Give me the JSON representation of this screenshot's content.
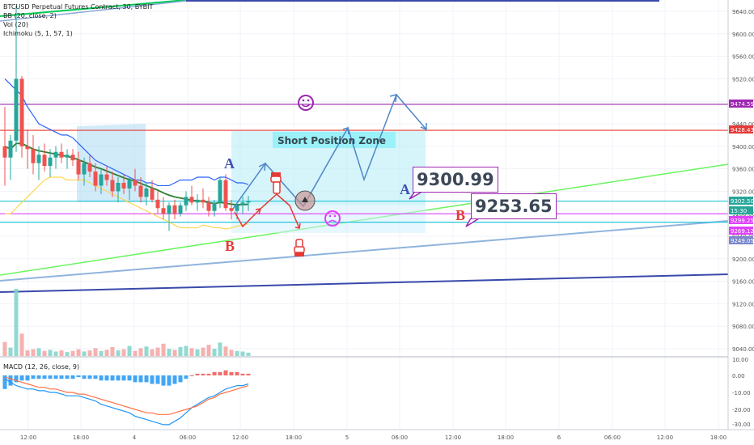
{
  "legend": {
    "symbol": "BTCUSD Perpetual Futures Contract, 30, BYBIT",
    "bb": "BB (20, close, 2)",
    "vol": "Vol (20)",
    "ichimoku": "Ichimoku (5, 1, 57, 1)",
    "macd": "MACD (12, 26, close, 9)"
  },
  "annotations": {
    "zone_label": "Short Position Zone",
    "box_a_price": "9300.99",
    "box_b_price": "9253.65",
    "wave_a_upper": "A",
    "wave_b_lower": "B",
    "wave_a_right": "A",
    "wave_b_right": "B"
  },
  "colors": {
    "bull": "#26a69a",
    "bear": "#ef5350",
    "annotation_red": "#e53935",
    "annotation_blue": "#3f51b5",
    "path_blue": "#4f86c6",
    "purple": "#9c27b0",
    "zone_fill": "#b3ecf7"
  },
  "chart_data": {
    "type": "candlestick",
    "symbol": "BTCUSD",
    "timeframe": "30",
    "exchange": "BYBIT",
    "price_axis_ticks": [
      "9640.00",
      "9600.00",
      "9560.00",
      "9520.00",
      "9480.00",
      "9440.00",
      "9400.00",
      "9360.00",
      "9320.00",
      "9280.00",
      "9240.00",
      "9200.00",
      "9160.00",
      "9120.00",
      "9080.00",
      "9040.00"
    ],
    "time_axis_ticks": [
      "12:00",
      "18:00",
      "4",
      "06:00",
      "12:00",
      "18:00",
      "5",
      "06:00",
      "12:00",
      "18:00",
      "6",
      "06:00",
      "12:00",
      "18:00"
    ],
    "macd_axis_ticks": [
      "10.00",
      "0.00",
      "-10.00",
      "-20.00",
      "-30.00"
    ],
    "price_tags": [
      {
        "label": "9474.59",
        "color": "#9c27b0",
        "value": 9474.59
      },
      {
        "label": "9428.43",
        "color": "#e53935",
        "value": 9428.43
      },
      {
        "label": "9302.50",
        "color": "#26a69a",
        "value": 9302.5
      },
      {
        "label": "15:30",
        "color": "#26a69a",
        "value": 9290
      },
      {
        "label": "9299.25",
        "color": "#e040fb",
        "value": 9280
      },
      {
        "label": "9269.12",
        "color": "#e040fb",
        "value": 9269.12
      },
      {
        "label": "9249.05",
        "color": "#7986cb",
        "value": 9249.05
      }
    ],
    "horizontal_levels": [
      {
        "value": 9474.59,
        "color": "#9c27b0"
      },
      {
        "value": 9428.43,
        "color": "#e53935"
      },
      {
        "value": 9302.5,
        "color": "#26c6da"
      },
      {
        "value": 9280,
        "color": "#e040fb"
      },
      {
        "value": 9265,
        "color": "#26c6da"
      }
    ],
    "candles": [
      {
        "o": 9400,
        "h": 9470,
        "l": 9330,
        "c": 9380
      },
      {
        "o": 9380,
        "h": 9420,
        "l": 9340,
        "c": 9410
      },
      {
        "o": 9410,
        "h": 9650,
        "l": 9390,
        "c": 9520
      },
      {
        "o": 9520,
        "h": 9525,
        "l": 9380,
        "c": 9400
      },
      {
        "o": 9400,
        "h": 9430,
        "l": 9360,
        "c": 9395
      },
      {
        "o": 9395,
        "h": 9420,
        "l": 9350,
        "c": 9370
      },
      {
        "o": 9370,
        "h": 9400,
        "l": 9340,
        "c": 9385
      },
      {
        "o": 9385,
        "h": 9405,
        "l": 9355,
        "c": 9365
      },
      {
        "o": 9365,
        "h": 9395,
        "l": 9345,
        "c": 9380
      },
      {
        "o": 9380,
        "h": 9400,
        "l": 9360,
        "c": 9390
      },
      {
        "o": 9390,
        "h": 9405,
        "l": 9370,
        "c": 9380
      },
      {
        "o": 9380,
        "h": 9395,
        "l": 9360,
        "c": 9385
      },
      {
        "o": 9385,
        "h": 9395,
        "l": 9365,
        "c": 9375
      },
      {
        "o": 9375,
        "h": 9390,
        "l": 9340,
        "c": 9350
      },
      {
        "o": 9350,
        "h": 9380,
        "l": 9330,
        "c": 9370
      },
      {
        "o": 9370,
        "h": 9385,
        "l": 9345,
        "c": 9355
      },
      {
        "o": 9355,
        "h": 9370,
        "l": 9320,
        "c": 9330
      },
      {
        "o": 9330,
        "h": 9360,
        "l": 9315,
        "c": 9350
      },
      {
        "o": 9350,
        "h": 9365,
        "l": 9330,
        "c": 9340
      },
      {
        "o": 9340,
        "h": 9355,
        "l": 9310,
        "c": 9320
      },
      {
        "o": 9320,
        "h": 9345,
        "l": 9300,
        "c": 9335
      },
      {
        "o": 9335,
        "h": 9350,
        "l": 9315,
        "c": 9325
      },
      {
        "o": 9325,
        "h": 9345,
        "l": 9305,
        "c": 9340
      },
      {
        "o": 9340,
        "h": 9360,
        "l": 9320,
        "c": 9330
      },
      {
        "o": 9330,
        "h": 9345,
        "l": 9300,
        "c": 9310
      },
      {
        "o": 9310,
        "h": 9335,
        "l": 9295,
        "c": 9325
      },
      {
        "o": 9325,
        "h": 9340,
        "l": 9300,
        "c": 9305
      },
      {
        "o": 9305,
        "h": 9320,
        "l": 9280,
        "c": 9290
      },
      {
        "o": 9290,
        "h": 9310,
        "l": 9270,
        "c": 9280
      },
      {
        "o": 9280,
        "h": 9300,
        "l": 9250,
        "c": 9295
      },
      {
        "o": 9295,
        "h": 9305,
        "l": 9270,
        "c": 9280
      },
      {
        "o": 9280,
        "h": 9300,
        "l": 9275,
        "c": 9295
      },
      {
        "o": 9295,
        "h": 9320,
        "l": 9285,
        "c": 9310
      },
      {
        "o": 9310,
        "h": 9330,
        "l": 9295,
        "c": 9300
      },
      {
        "o": 9300,
        "h": 9315,
        "l": 9285,
        "c": 9305
      },
      {
        "o": 9305,
        "h": 9325,
        "l": 9290,
        "c": 9300
      },
      {
        "o": 9300,
        "h": 9310,
        "l": 9275,
        "c": 9285
      },
      {
        "o": 9285,
        "h": 9305,
        "l": 9275,
        "c": 9300
      },
      {
        "o": 9300,
        "h": 9345,
        "l": 9290,
        "c": 9340
      },
      {
        "o": 9340,
        "h": 9350,
        "l": 9285,
        "c": 9290
      },
      {
        "o": 9290,
        "h": 9305,
        "l": 9270,
        "c": 9285
      },
      {
        "o": 9285,
        "h": 9300,
        "l": 9270,
        "c": 9295
      },
      {
        "o": 9295,
        "h": 9310,
        "l": 9280,
        "c": 9300
      },
      {
        "o": 9300,
        "h": 9312,
        "l": 9285,
        "c": 9302.5
      }
    ],
    "volume": [
      25,
      15,
      120,
      40,
      10,
      12,
      14,
      9,
      11,
      8,
      10,
      7,
      9,
      12,
      8,
      10,
      14,
      9,
      11,
      16,
      10,
      12,
      18,
      9,
      14,
      17,
      12,
      15,
      22,
      13,
      11,
      16,
      18,
      14,
      12,
      15,
      20,
      13,
      24,
      17,
      11,
      9,
      8,
      6
    ],
    "bb_upper": [
      9520,
      9510,
      9500,
      9490,
      9470,
      9455,
      9440,
      9435,
      9430,
      9425,
      9420,
      9420,
      9415,
      9405,
      9395,
      9385,
      9375,
      9370,
      9365,
      9360,
      9355,
      9350,
      9345,
      9340,
      9340,
      9335,
      9335,
      9330,
      9330,
      9330,
      9335,
      9340,
      9340,
      9340,
      9345,
      9345,
      9345,
      9340,
      9345,
      9345,
      9340,
      9335,
      9335,
      9332
    ],
    "bb_basis": [
      9400,
      9395,
      9405,
      9405,
      9400,
      9395,
      9392,
      9390,
      9388,
      9386,
      9384,
      9382,
      9380,
      9376,
      9372,
      9368,
      9363,
      9360,
      9356,
      9352,
      9348,
      9344,
      9341,
      9338,
      9334,
      9330,
      9326,
      9322,
      9317,
      9313,
      9310,
      9308,
      9306,
      9304,
      9303,
      9302,
      9300,
      9298,
      9300,
      9299,
      9297,
      9296,
      9296,
      9297
    ],
    "bb_lower": [
      9280,
      9280,
      9290,
      9300,
      9310,
      9320,
      9330,
      9340,
      9345,
      9345,
      9345,
      9340,
      9340,
      9340,
      9340,
      9335,
      9330,
      9325,
      9320,
      9315,
      9310,
      9305,
      9300,
      9295,
      9290,
      9285,
      9280,
      9275,
      9270,
      9265,
      9260,
      9255,
      9255,
      9255,
      9255,
      9260,
      9258,
      9255,
      9255,
      9253,
      9255,
      9258,
      9260,
      9262
    ],
    "macd_line": [
      -2,
      -4,
      -6,
      -7,
      -8,
      -8,
      -9,
      -9,
      -10,
      -10,
      -11,
      -12,
      -12,
      -12,
      -13,
      -14,
      -15,
      -17,
      -18,
      -19,
      -20,
      -21,
      -22,
      -24,
      -25,
      -26,
      -27,
      -28,
      -29,
      -29,
      -27,
      -25,
      -22,
      -19,
      -17,
      -15,
      -13,
      -12,
      -10,
      -8,
      -7,
      -6,
      -6,
      -5
    ],
    "macd_signal": [
      -1,
      -2,
      -3,
      -4,
      -5,
      -6,
      -7,
      -7,
      -8,
      -8,
      -9,
      -10,
      -10,
      -11,
      -11,
      -12,
      -13,
      -14,
      -15,
      -16,
      -17,
      -18,
      -19,
      -20,
      -21,
      -22,
      -22,
      -23,
      -23,
      -23,
      -22,
      -21,
      -20,
      -19,
      -18,
      -16,
      -14,
      -13,
      -11,
      -10,
      -9,
      -8,
      -7,
      -6
    ],
    "macd_hist": [
      -8,
      -6,
      -4,
      -3,
      -3,
      -2,
      -2,
      -2,
      -2,
      -2,
      -2,
      -2,
      -2,
      -1,
      -2,
      -2,
      -2,
      -3,
      -3,
      -3,
      -3,
      -3,
      -3,
      -4,
      -4,
      -4,
      -5,
      -5,
      -6,
      -6,
      -5,
      -4,
      -2,
      0,
      1,
      1,
      1,
      2,
      2,
      3,
      2,
      2,
      1,
      1
    ]
  }
}
